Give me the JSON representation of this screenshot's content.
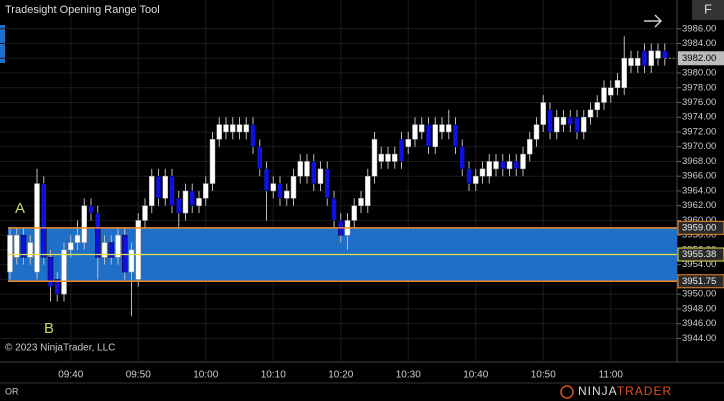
{
  "chart_data": {
    "type": "candlestick",
    "title": "Tradesight Opening Range Tool",
    "copyright": "© 2023 NinjaTrader, LLC",
    "panel_label": "OR",
    "logo": {
      "first": "NINJA",
      "second": "TRADER"
    },
    "corner_button": "F",
    "annotations": [
      "A",
      "B"
    ],
    "up_color": "#ffffff",
    "down_color": "#1010e0",
    "categories": [
      null,
      null,
      null,
      null,
      null,
      null,
      null,
      null,
      null,
      "09:40",
      null,
      null,
      null,
      null,
      null,
      null,
      null,
      null,
      null,
      "09:50",
      null,
      null,
      null,
      null,
      null,
      null,
      null,
      null,
      null,
      "10:00",
      null,
      null,
      null,
      null,
      null,
      null,
      null,
      null,
      null,
      "10:10",
      null,
      null,
      null,
      null,
      null,
      null,
      null,
      null,
      null,
      "10:20",
      null,
      null,
      null,
      null,
      null,
      null,
      null,
      null,
      null,
      "10:30",
      null,
      null,
      null,
      null,
      null,
      null,
      null,
      null,
      null,
      "10:40",
      null,
      null,
      null,
      null,
      null,
      null,
      null,
      null,
      null,
      "10:50",
      null,
      null,
      null,
      null,
      null,
      null,
      null,
      null,
      null,
      "11:00",
      null,
      null,
      null,
      null,
      null,
      null,
      null,
      null
    ],
    "open": [
      3953,
      3955,
      3958,
      3955,
      3953,
      3965,
      3955,
      3952,
      3950,
      3956,
      3957,
      3957,
      3962,
      3961,
      3955,
      3957,
      3955,
      3958,
      3953,
      3952,
      3960,
      3962,
      3966,
      3963,
      3966,
      3963,
      3961,
      3964,
      3962,
      3963,
      3965,
      3971,
      3972,
      3972,
      3972,
      3972,
      3973,
      3970,
      3967,
      3964,
      3965,
      3963,
      3963,
      3966,
      3966,
      3968,
      3965,
      3967,
      3963,
      3960,
      3958,
      3960,
      3962,
      3962,
      3966,
      3968,
      3968,
      3968,
      3971,
      3970,
      3971,
      3972,
      3973,
      3970,
      3972,
      3972,
      3973,
      3970,
      3967,
      3965,
      3966,
      3966,
      3967,
      3968,
      3967,
      3968,
      3967,
      3969,
      3971,
      3973,
      3975,
      3972,
      3973,
      3974,
      3974,
      3972,
      3974,
      3975,
      3976,
      3977,
      3978,
      3978,
      3981,
      3981,
      3983,
      3981,
      3982,
      3983
    ],
    "high": [
      3959,
      3959,
      3959,
      3958,
      3967,
      3966,
      3956,
      3953,
      3957,
      3958,
      3960,
      3963,
      3963,
      3962,
      3958,
      3958,
      3959,
      3959,
      3957,
      3961,
      3963,
      3967,
      3967,
      3967,
      3967,
      3964,
      3965,
      3965,
      3964,
      3966,
      3972,
      3974,
      3974,
      3974,
      3974,
      3974,
      3974,
      3971,
      3968,
      3966,
      3966,
      3965,
      3967,
      3969,
      3969,
      3969,
      3968,
      3968,
      3964,
      3961,
      3961,
      3963,
      3964,
      3967,
      3972,
      3970,
      3970,
      3970,
      3972,
      3972,
      3974,
      3974,
      3974,
      3974,
      3974,
      3975,
      3974,
      3971,
      3968,
      3967,
      3968,
      3969,
      3969,
      3969,
      3969,
      3969,
      3970,
      3972,
      3974,
      3977,
      3976,
      3975,
      3975,
      3975,
      3975,
      3975,
      3976,
      3977,
      3979,
      3979,
      3980,
      3985,
      3983,
      3983,
      3984,
      3984,
      3984,
      3984
    ],
    "low": [
      3952,
      3954,
      3954,
      3954,
      3952,
      3954,
      3949,
      3949,
      3949,
      3955,
      3956,
      3956,
      3960,
      3952,
      3954,
      3954,
      3954,
      3952,
      3947,
      3951,
      3959,
      3961,
      3962,
      3962,
      3961,
      3959,
      3960,
      3961,
      3961,
      3962,
      3964,
      3970,
      3971,
      3971,
      3971,
      3971,
      3969,
      3966,
      3960,
      3963,
      3962,
      3962,
      3962,
      3965,
      3965,
      3964,
      3964,
      3962,
      3959,
      3957,
      3956,
      3959,
      3961,
      3961,
      3965,
      3967,
      3967,
      3967,
      3967,
      3969,
      3970,
      3971,
      3969,
      3969,
      3971,
      3971,
      3969,
      3966,
      3964,
      3964,
      3965,
      3965,
      3966,
      3966,
      3966,
      3966,
      3966,
      3968,
      3970,
      3972,
      3971,
      3971,
      3972,
      3972,
      3971,
      3971,
      3973,
      3974,
      3975,
      3976,
      3977,
      3977,
      3980,
      3980,
      3980,
      3980,
      3981,
      3981
    ],
    "close": [
      3958,
      3958,
      3955,
      3957,
      3965,
      3955,
      3951,
      3950,
      3956,
      3957,
      3958,
      3962,
      3961,
      3955,
      3957,
      3955,
      3958,
      3953,
      3956,
      3960,
      3962,
      3966,
      3963,
      3966,
      3962,
      3961,
      3964,
      3962,
      3963,
      3965,
      3971,
      3973,
      3973,
      3973,
      3973,
      3973,
      3970,
      3967,
      3964,
      3965,
      3963,
      3964,
      3966,
      3968,
      3968,
      3965,
      3967,
      3963,
      3960,
      3958,
      3960,
      3962,
      3963,
      3966,
      3971,
      3969,
      3969,
      3969,
      3968,
      3971,
      3973,
      3973,
      3970,
      3973,
      3973,
      3973,
      3970,
      3967,
      3965,
      3966,
      3967,
      3968,
      3968,
      3967,
      3968,
      3967,
      3969,
      3971,
      3973,
      3976,
      3972,
      3974,
      3974,
      3973,
      3972,
      3974,
      3975,
      3976,
      3978,
      3978,
      3979,
      3982,
      3982,
      3982,
      3981,
      3983,
      3983,
      3982
    ],
    "ylim": [
      3940.8,
      3989.9
    ],
    "yticks": [
      {
        "value": 3944,
        "label": "3944.00"
      },
      {
        "value": 3946,
        "label": "3946.00"
      },
      {
        "value": 3948,
        "label": "3948.00"
      },
      {
        "value": 3950,
        "label": "3950.00"
      },
      {
        "value": 3952,
        "label": "3952.00"
      },
      {
        "value": 3954,
        "label": "3954.00"
      },
      {
        "value": 3956,
        "label": "3956.00"
      },
      {
        "value": 3958,
        "label": "3958.00"
      },
      {
        "value": 3960,
        "label": "3960.00"
      },
      {
        "value": 3962,
        "label": "3962.00"
      },
      {
        "value": 3964,
        "label": "3964.00"
      },
      {
        "value": 3966,
        "label": "3966.00"
      },
      {
        "value": 3968,
        "label": "3968.00"
      },
      {
        "value": 3970,
        "label": "3970.00"
      },
      {
        "value": 3972,
        "label": "3972.00"
      },
      {
        "value": 3974,
        "label": "3974.00"
      },
      {
        "value": 3976,
        "label": "3976.00"
      },
      {
        "value": 3978,
        "label": "3978.00"
      },
      {
        "value": 3980,
        "label": "3980.00"
      },
      {
        "value": 3982,
        "label": "3982.00"
      },
      {
        "value": 3984,
        "label": "3984.00"
      },
      {
        "value": 3986,
        "label": "3986.00"
      }
    ],
    "grid": true,
    "range": {
      "top": {
        "value": 3959,
        "label": "3959.00"
      },
      "mid": {
        "value": 3955.38,
        "label": "3955.38"
      },
      "bottom": {
        "value": 3951.75,
        "label": "3951.75"
      },
      "fill": "#1f6fc8",
      "edge_color": "#f08a24",
      "mid_color": "#e8e04a"
    },
    "last_price": {
      "value": 3982,
      "label": "3982.00"
    }
  }
}
